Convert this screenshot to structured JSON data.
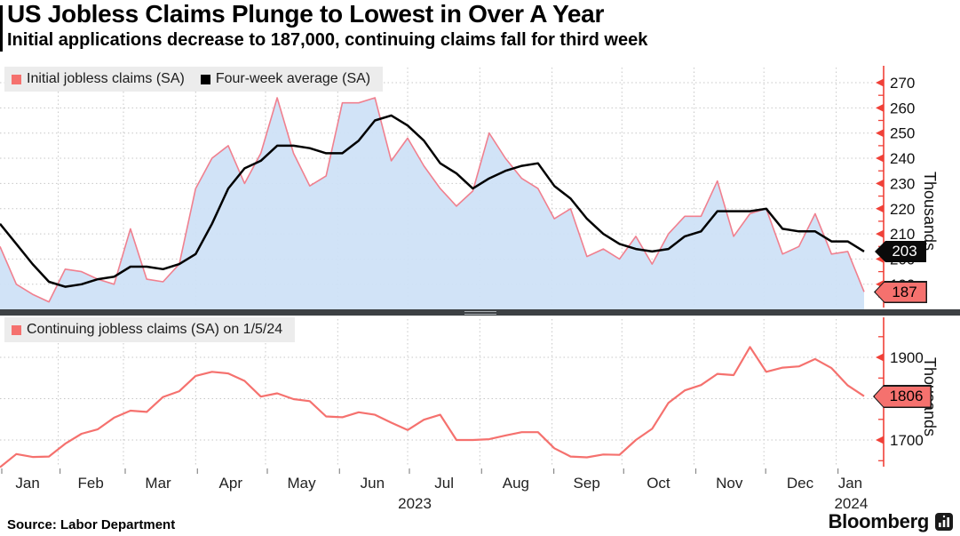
{
  "header": {
    "title": "US Jobless Claims Plunge to Lowest in Over A Year",
    "subtitle": "Initial applications decrease to 187,000, continuing claims fall for third week"
  },
  "colors": {
    "axis_red": "#f04138",
    "series_pink": "#f5716e",
    "series_pink_light": "#f0808f",
    "series_black": "#000000",
    "area_fill": "#cfe1f7",
    "grid": "#c7c7c7",
    "legend_bg": "#ececec",
    "divider": "#3d4144",
    "callout_pink_bg": "#f5716e",
    "callout_black_bg": "#0a0a0a"
  },
  "x_axis": {
    "month_labels": [
      "Jan",
      "Feb",
      "Mar",
      "Apr",
      "May",
      "Jun",
      "Jul",
      "Aug",
      "Sep",
      "Oct",
      "Nov",
      "Dec",
      "Jan"
    ],
    "year_labels": [
      {
        "label": "2023"
      },
      {
        "label": "2024"
      }
    ]
  },
  "footer": {
    "source": "Source: Labor Department",
    "brand": "Bloomberg"
  },
  "chart_data": [
    {
      "type": "area",
      "panel": "top",
      "legend": [
        {
          "label": "Initial jobless claims (SA)",
          "color": "#f5716e"
        },
        {
          "label": "Four-week average (SA)",
          "color": "#000000"
        }
      ],
      "ylabel": "Thousands",
      "ylim": [
        180,
        272
      ],
      "yticks_major": [
        190,
        200,
        210,
        220,
        230,
        240,
        250,
        260,
        270
      ],
      "yticks_minor": [
        185,
        195,
        205,
        215,
        225,
        235,
        245,
        255,
        265
      ],
      "grid": "dotted",
      "legend_position": "top-left",
      "x_span_weeks": 54,
      "series": [
        {
          "name": "Initial jobless claims (SA)",
          "style": "area",
          "values": [
            205,
            190,
            186,
            183,
            196,
            195,
            192,
            190,
            212,
            192,
            191,
            198,
            228,
            240,
            245,
            230,
            242,
            264,
            242,
            229,
            233,
            262,
            262,
            264,
            239,
            248,
            237,
            228,
            221,
            227,
            250,
            240,
            232,
            228,
            216,
            220,
            201,
            204,
            200,
            209,
            198,
            210,
            217,
            217,
            231,
            209,
            218,
            220,
            202,
            205,
            218,
            202,
            203,
            187
          ]
        },
        {
          "name": "Four-week average (SA)",
          "style": "line",
          "values": [
            214,
            206,
            198,
            191,
            189,
            190,
            192,
            193,
            197,
            197,
            196,
            198,
            202,
            214,
            228,
            236,
            239,
            245,
            245,
            244,
            242,
            242,
            247,
            255,
            257,
            253,
            247,
            238,
            234,
            228,
            232,
            235,
            237,
            238,
            229,
            224,
            216,
            210,
            206,
            204,
            203,
            204,
            209,
            211,
            219,
            219,
            219,
            220,
            212,
            211,
            211,
            207,
            207,
            203
          ]
        }
      ],
      "callouts": [
        {
          "label": "203",
          "value": 203,
          "series": "Four-week average (SA)",
          "bg": "#0a0a0a",
          "fg": "#ffffff"
        },
        {
          "label": "187",
          "value": 187,
          "series": "Initial jobless claims (SA)",
          "bg": "#f5716e",
          "fg": "#000000"
        }
      ]
    },
    {
      "type": "line",
      "panel": "bottom",
      "legend": [
        {
          "label": "Continuing jobless claims (SA) on 1/5/24",
          "color": "#f5716e"
        }
      ],
      "ylabel": "Thousands",
      "ylim": [
        1625,
        1975
      ],
      "yticks_major": [
        1700,
        1800,
        1900
      ],
      "yticks_minor": [
        1650,
        1750,
        1850,
        1950
      ],
      "grid": "dotted",
      "legend_position": "top-left",
      "series": [
        {
          "name": "Continuing jobless claims (SA)",
          "style": "line",
          "values": [
            1634,
            1666,
            1659,
            1660,
            1691,
            1715,
            1726,
            1754,
            1771,
            1768,
            1804,
            1818,
            1855,
            1865,
            1861,
            1843,
            1805,
            1813,
            1799,
            1794,
            1757,
            1755,
            1767,
            1761,
            1742,
            1724,
            1749,
            1761,
            1700,
            1700,
            1702,
            1711,
            1719,
            1719,
            1680,
            1660,
            1658,
            1665,
            1664,
            1700,
            1727,
            1790,
            1820,
            1833,
            1860,
            1857,
            1925,
            1865,
            1875,
            1878,
            1896,
            1874,
            1832,
            1806
          ]
        }
      ],
      "callouts": [
        {
          "label": "1806",
          "value": 1806,
          "series": "Continuing jobless claims (SA)",
          "bg": "#f5716e",
          "fg": "#000000"
        }
      ]
    }
  ]
}
